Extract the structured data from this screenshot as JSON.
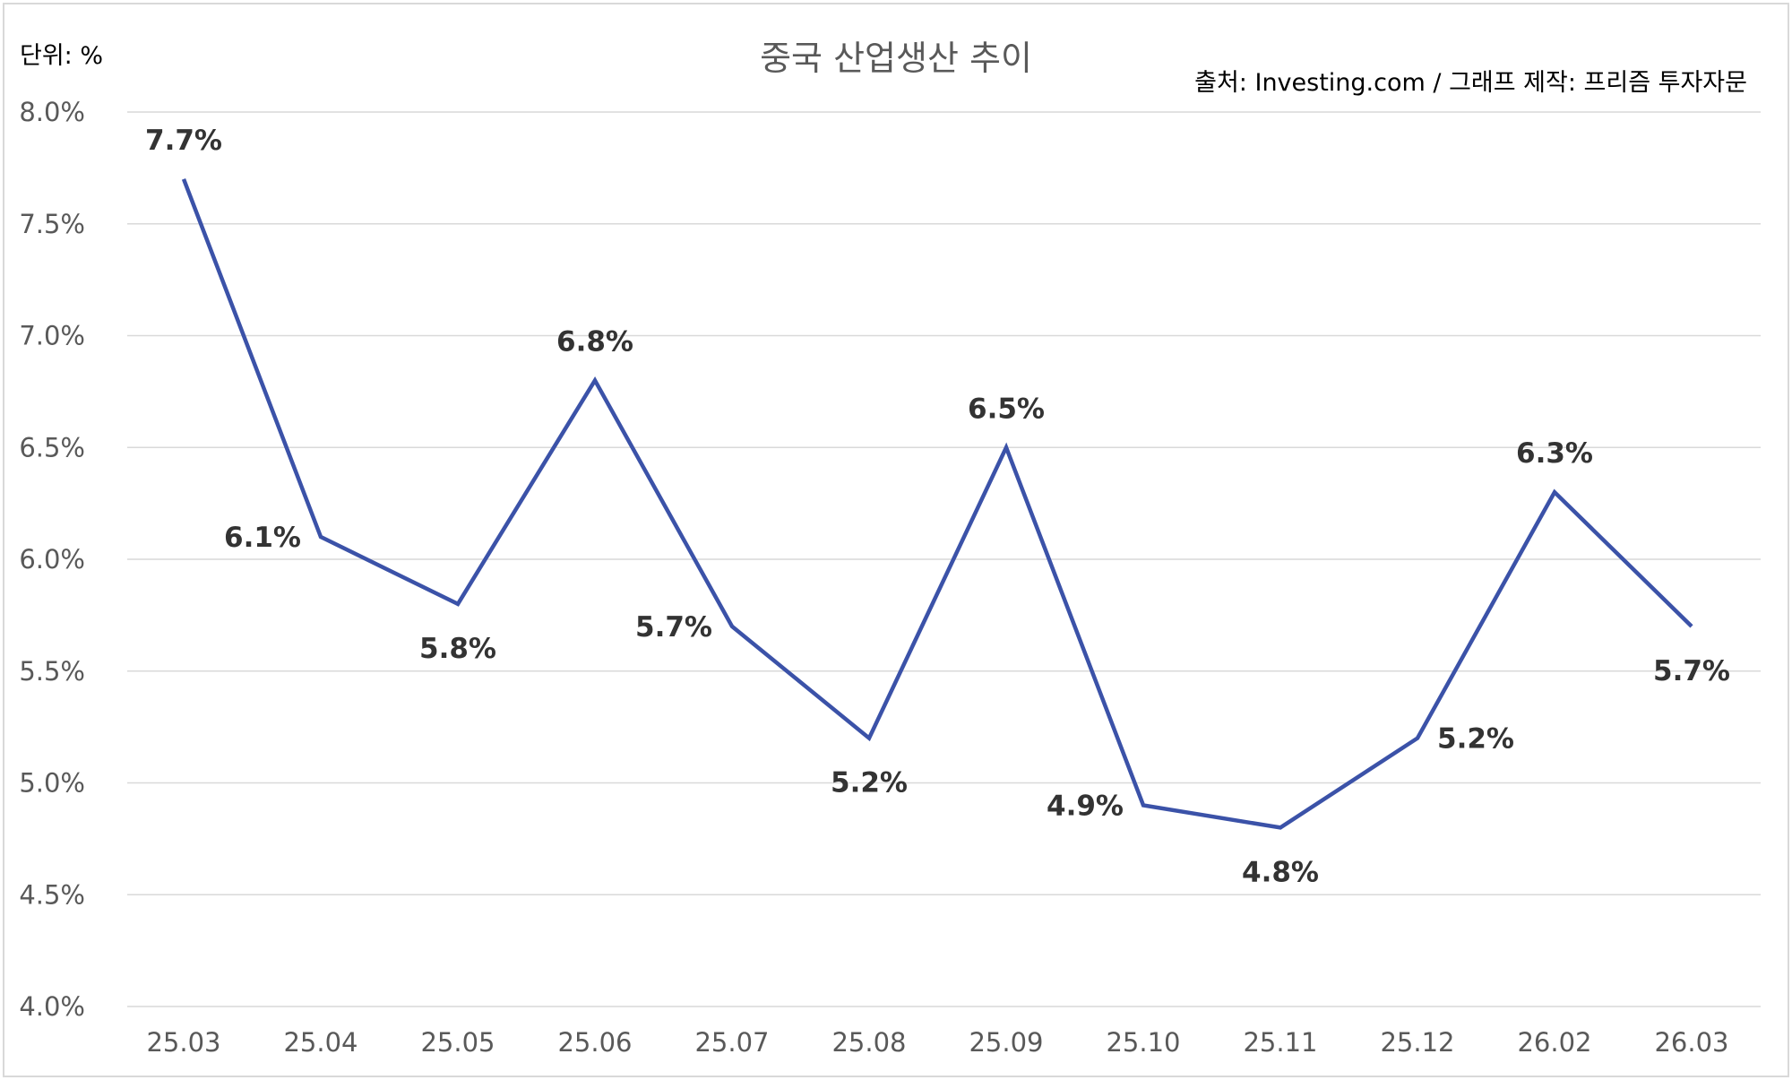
{
  "chart_data": {
    "type": "line",
    "title": "중국 산업생산 추이",
    "unit_label": "단위: %",
    "source": "출처: Investing.com / 그래프 제작: 프리즘 투자자문",
    "categories": [
      "25.03",
      "25.04",
      "25.05",
      "25.06",
      "25.07",
      "25.08",
      "25.09",
      "25.10",
      "25.11",
      "25.12",
      "26.02",
      "26.03"
    ],
    "series": [
      {
        "values": [
          7.7,
          6.1,
          5.8,
          6.8,
          5.7,
          5.2,
          6.5,
          4.9,
          4.8,
          5.2,
          6.3,
          5.7
        ]
      }
    ],
    "data_labels": [
      "7.7%",
      "6.1%",
      "5.8%",
      "6.8%",
      "5.7%",
      "5.2%",
      "6.5%",
      "4.9%",
      "4.8%",
      "5.2%",
      "6.3%",
      "5.7%"
    ],
    "ylim": [
      4.0,
      8.0
    ],
    "yticks": [
      4.0,
      4.5,
      5.0,
      5.5,
      6.0,
      6.5,
      7.0,
      7.5,
      8.0
    ],
    "ytick_labels": [
      "4.0%",
      "4.5%",
      "5.0%",
      "5.5%",
      "6.0%",
      "6.5%",
      "7.0%",
      "7.5%",
      "8.0%"
    ],
    "grid": true,
    "line_color": "#3b52a8",
    "grid_color": "#d9d9d9"
  }
}
